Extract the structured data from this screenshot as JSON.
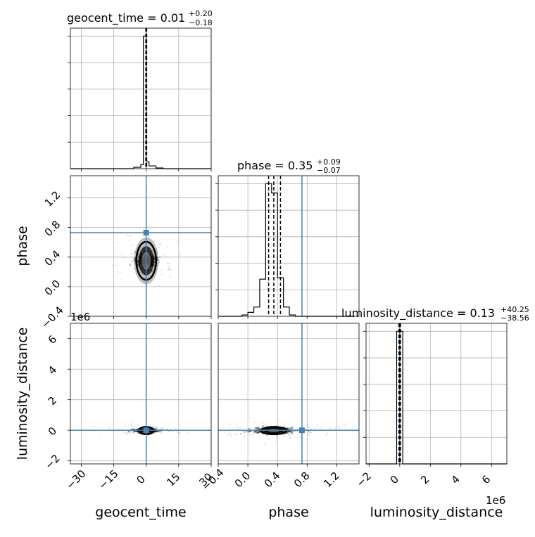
{
  "chart_data": {
    "type": "corner",
    "parameters": [
      "geocent_time",
      "phase",
      "luminosity_distance"
    ],
    "titles": [
      {
        "label": "geocent_time",
        "median": "0.01",
        "plus": "+0.20",
        "minus": "−0.18"
      },
      {
        "label": "phase",
        "median": "0.35",
        "plus": "+0.09",
        "minus": "−0.07"
      },
      {
        "label": "luminosity_distance",
        "median": "0.13",
        "plus": "+40.25",
        "minus": "−38.56"
      }
    ],
    "axis_ranges": {
      "geocent_time": [
        -35,
        30
      ],
      "phase": [
        -0.4,
        1.5
      ],
      "luminosity_distance": [
        -2.2,
        7
      ]
    },
    "ticks": {
      "geocent_time": [
        "−30",
        "−15",
        "0",
        "15",
        "30"
      ],
      "phase": [
        "−0.4",
        "0.0",
        "0.4",
        "0.8",
        "1.2"
      ],
      "luminosity_distance": [
        "−2",
        "0",
        "2",
        "4",
        "6"
      ]
    },
    "tick_values": {
      "geocent_time": [
        -30,
        -15,
        0,
        15,
        30
      ],
      "phase": [
        -0.4,
        0.0,
        0.4,
        0.8,
        1.2
      ],
      "luminosity_distance": [
        -2,
        0,
        2,
        4,
        6
      ]
    },
    "scale_label": "1e6",
    "truths": {
      "geocent_time": 0.0,
      "phase": 0.73,
      "luminosity_distance": 0.0
    },
    "quantiles": {
      "geocent_time": [
        -0.17,
        0.01,
        0.21
      ],
      "phase": [
        0.28,
        0.35,
        0.44
      ],
      "luminosity_distance": [
        -0.05,
        0.0,
        0.05
      ]
    },
    "histograms": {
      "geocent_time": {
        "edges": [
          -35,
          -31.75,
          -28.5,
          -25.25,
          -22,
          -18.75,
          -15.5,
          -12.25,
          -9,
          -5.75,
          -2.5,
          -1.3,
          0.1,
          1.3,
          4.5,
          7.75,
          11,
          14.25,
          17.5,
          20.75,
          24,
          27.25,
          30
        ],
        "counts": [
          0,
          0,
          0,
          0,
          0,
          0,
          0,
          0,
          0,
          0.01,
          0.03,
          0.96,
          0.05,
          0.02,
          0.005,
          0,
          0,
          0,
          0,
          0,
          0,
          0
        ]
      },
      "phase": {
        "edges": [
          -0.4,
          -0.32,
          -0.24,
          -0.16,
          -0.08,
          0.0,
          0.08,
          0.16,
          0.24,
          0.32,
          0.4,
          0.48,
          0.56,
          0.64,
          0.72,
          0.8,
          0.88,
          0.96,
          1.04,
          1.12,
          1.2,
          1.28,
          1.36,
          1.44
        ],
        "counts": [
          0,
          0,
          0,
          0,
          0.01,
          0.03,
          0.07,
          0.28,
          1.0,
          0.93,
          0.29,
          0.07,
          0.01,
          0,
          0,
          0,
          0,
          0,
          0,
          0,
          0,
          0,
          0
        ]
      },
      "luminosity_distance": {
        "edges": [
          -2.2,
          -1.8,
          -1.4,
          -1.0,
          -0.6,
          -0.2,
          0.2,
          0.6,
          1.0,
          1.4,
          1.8,
          2.2,
          2.6,
          3.0,
          3.4,
          3.8,
          4.2,
          4.6,
          5.0,
          5.4,
          5.8,
          6.2,
          6.6,
          7.0
        ],
        "counts": [
          0,
          0,
          0,
          0,
          0,
          1.0,
          0,
          0,
          0,
          0,
          0,
          0,
          0,
          0,
          0,
          0,
          0,
          0,
          0,
          0,
          0,
          0,
          0
        ]
      }
    },
    "samples_2d": {
      "geocent_time_phase": {
        "center": [
          0.0,
          0.35
        ],
        "spread": [
          1.6,
          0.09
        ]
      },
      "geocent_time_luminosity_distance": {
        "center": [
          0.0,
          -0.02
        ],
        "spread": [
          1.2,
          0.08
        ]
      },
      "phase_luminosity_distance": {
        "center": [
          0.35,
          -0.02
        ],
        "spread": [
          0.06,
          0.08
        ]
      }
    },
    "grid": true
  }
}
